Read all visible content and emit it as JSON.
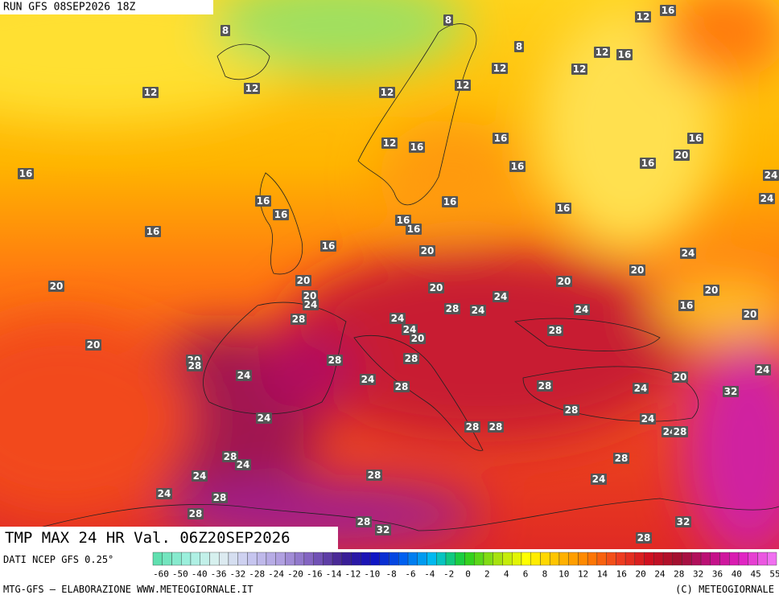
{
  "header": {
    "run": "RUN GFS 08SEP2026 18Z"
  },
  "map": {
    "title": "TMP MAX 24 HR Val. 06Z20SEP2026",
    "labels": [
      8,
      8,
      8,
      12,
      16,
      12,
      16,
      12,
      12,
      12,
      12,
      12,
      12,
      12,
      16,
      16,
      16,
      16,
      16,
      20,
      16,
      24,
      16,
      16,
      16,
      24,
      16,
      16,
      16,
      16,
      16,
      20,
      24,
      20,
      20,
      20,
      20,
      20,
      20,
      20,
      24,
      24,
      16,
      28,
      28,
      24,
      24,
      20,
      24,
      24,
      20,
      28,
      20,
      20,
      28,
      28,
      28,
      24,
      24,
      20,
      24,
      28,
      28,
      24,
      32,
      28,
      24,
      24,
      28,
      28,
      24,
      28,
      28,
      24,
      28,
      24,
      28,
      24,
      24,
      28,
      28,
      28,
      32,
      32,
      28
    ]
  },
  "legend": {
    "source": "DATI NCEP GFS 0.25°",
    "ticks": [
      -60,
      -50,
      -40,
      -36,
      -32,
      -28,
      -24,
      -20,
      -16,
      -14,
      -12,
      -10,
      -8,
      -6,
      -4,
      -2,
      0,
      2,
      4,
      6,
      8,
      10,
      12,
      14,
      16,
      20,
      24,
      28,
      32,
      36,
      40,
      45,
      55
    ]
  },
  "footer": {
    "left": "MTG-GFS — ELABORAZIONE WWW.METEOGIORNALE.IT",
    "right": "(C) METEOGIORNALE"
  }
}
